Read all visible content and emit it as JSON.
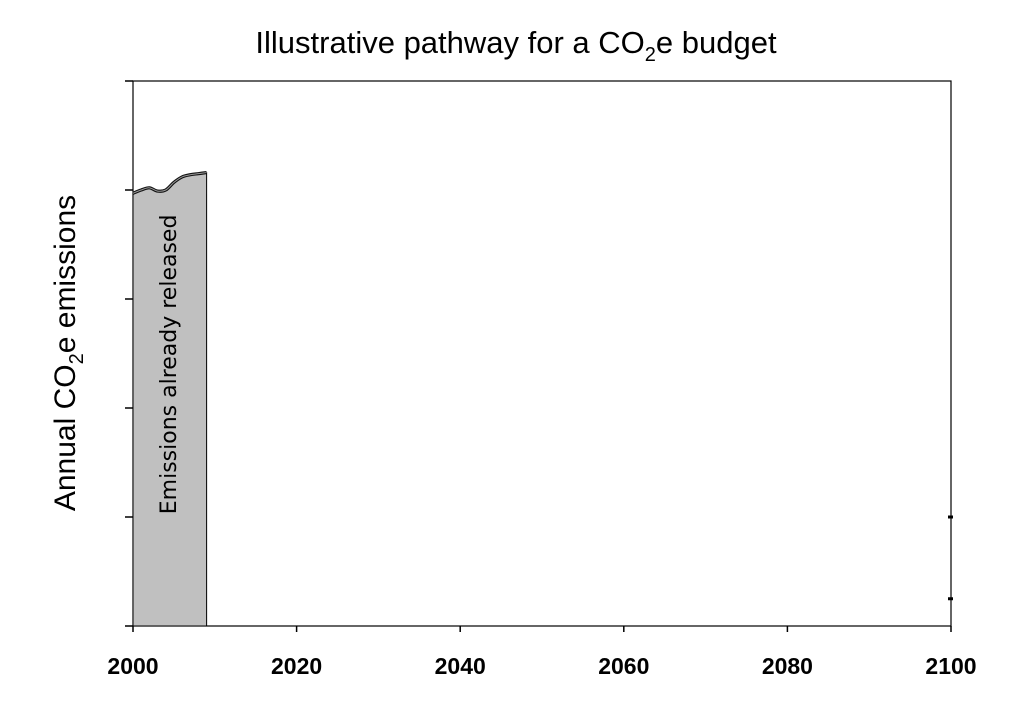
{
  "chart_data": {
    "type": "area",
    "title": {
      "before": "Illustrative pathway for a CO",
      "sub": "2",
      "after": "e budget"
    },
    "ylabel": {
      "before": "Annual CO",
      "sub": "2",
      "after": "e emissions"
    },
    "xlabel": "",
    "xlim": [
      2000,
      2100
    ],
    "ylim": [
      0,
      5
    ],
    "x_ticks": [
      2000,
      2020,
      2040,
      2060,
      2080,
      2100
    ],
    "x_tick_labels": [
      "2000",
      "2020",
      "2040",
      "2060",
      "2080",
      "2100"
    ],
    "y_ticks": [
      0,
      1,
      2,
      3,
      4,
      5
    ],
    "y_tick_labels": [],
    "grid": false,
    "legend": "none",
    "series": [
      {
        "x": [
          2000,
          2001,
          2002,
          2003,
          2004,
          2005,
          2006,
          2007,
          2008,
          2009
        ],
        "values": [
          3.97,
          4.0,
          4.02,
          3.99,
          4.0,
          4.07,
          4.12,
          4.14,
          4.15,
          4.16
        ],
        "fill_until": 2009,
        "fill_color": "#c0c0c0",
        "line_color": "#111111"
      }
    ],
    "annotations": [
      {
        "text": "Emissions already released",
        "x": 2004.5,
        "y": 2.4,
        "rotation": -90
      }
    ],
    "right_axis_marks": [
      0.25,
      1.0
    ]
  }
}
